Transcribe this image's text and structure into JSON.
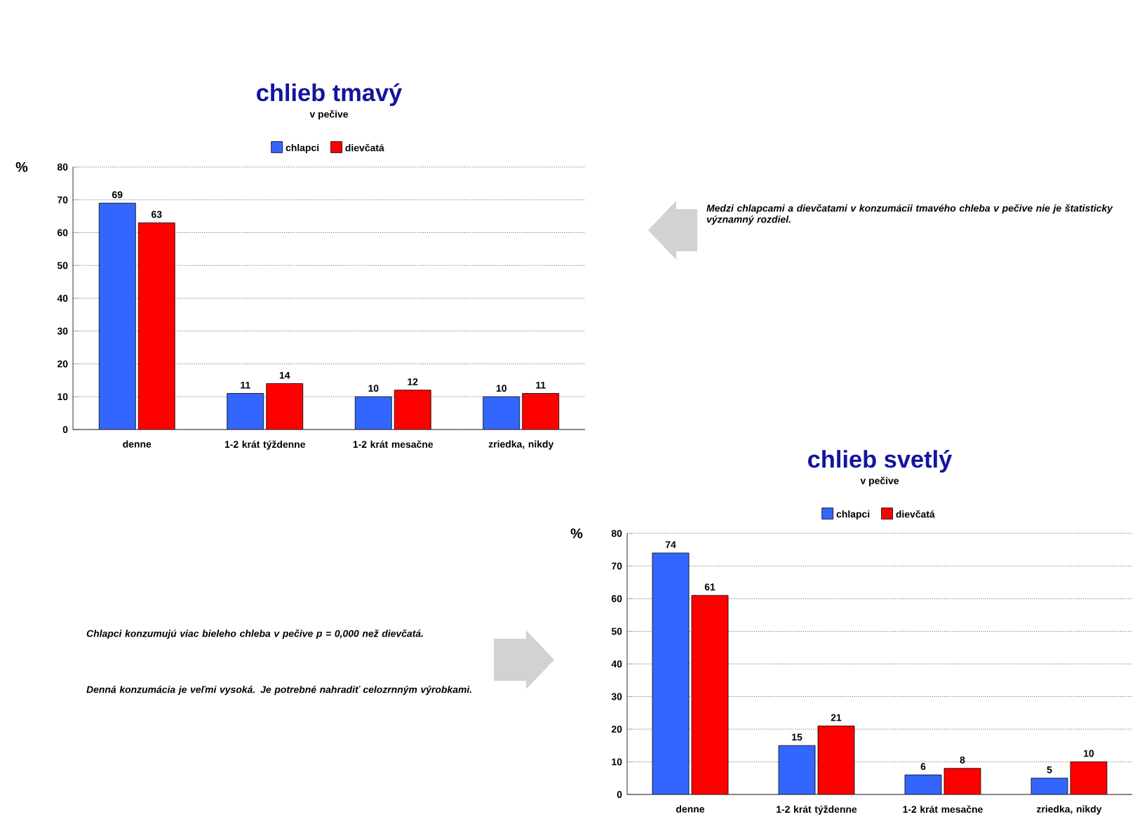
{
  "chart_data": [
    {
      "type": "bar",
      "title": "chlieb tmavý",
      "subtitle": "v pečive",
      "ylabel": "%",
      "categories": [
        "denne",
        "1-2 krát týždenne",
        "1-2 krát mesačne",
        "zriedka, nikdy"
      ],
      "series": [
        {
          "name": "chlapci",
          "color": "#3366ff",
          "values": [
            69,
            11,
            10,
            10
          ]
        },
        {
          "name": "dievčatá",
          "color": "#ff0000",
          "values": [
            63,
            14,
            12,
            11
          ]
        }
      ],
      "ylim": [
        0,
        80
      ],
      "yticks": [
        0,
        10,
        20,
        30,
        40,
        50,
        60,
        70,
        80
      ],
      "grid": "y",
      "legend": "top",
      "data_labels": true,
      "annotations": [
        "Medzi chlapcami a dievčatami v konzumácii tmavého chleba v pečive nie je štatisticky významný rozdiel."
      ]
    },
    {
      "type": "bar",
      "title": "chlieb svetlý",
      "subtitle": "v pečive",
      "ylabel": "%",
      "categories": [
        "denne",
        "1-2 krát týždenne",
        "1-2 krát mesačne",
        "zriedka, nikdy"
      ],
      "series": [
        {
          "name": "chlapci",
          "color": "#3366ff",
          "values": [
            74,
            15,
            6,
            5
          ]
        },
        {
          "name": "dievčatá",
          "color": "#ff0000",
          "values": [
            61,
            21,
            8,
            10
          ]
        }
      ],
      "ylim": [
        0,
        80
      ],
      "yticks": [
        0,
        10,
        20,
        30,
        40,
        50,
        60,
        70,
        80
      ],
      "grid": "y",
      "legend": "top",
      "data_labels": true,
      "annotations": [
        "Chlapci konzumujú viac bieleho chleba v pečive p = 0,000 než dievčatá.",
        "Denná konzumácia je veľmi vysoká. Je potrebné nahradiť celozrnným výrobkami."
      ]
    }
  ]
}
